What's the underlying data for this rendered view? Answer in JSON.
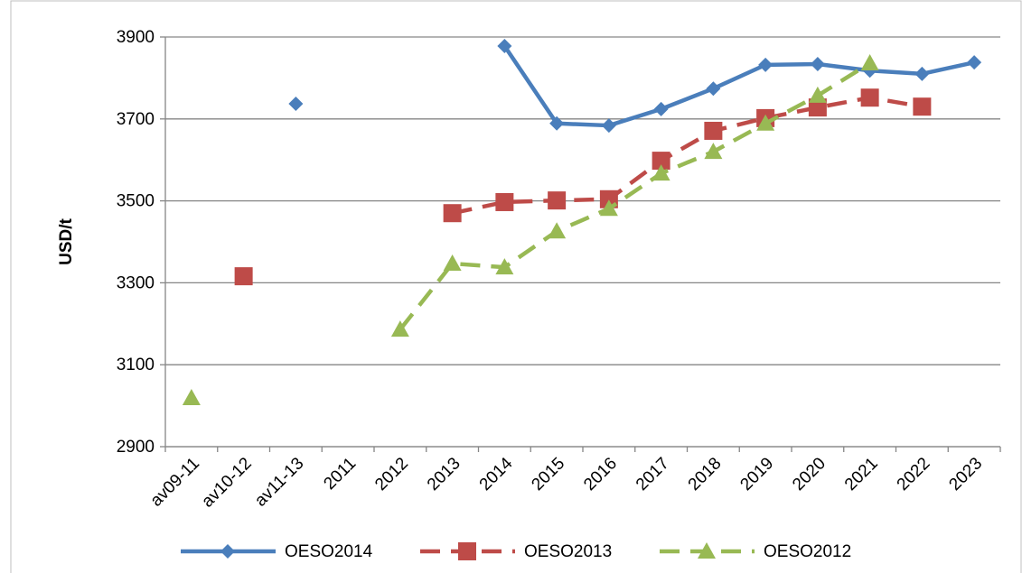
{
  "chart_data": {
    "type": "line",
    "y_label": "USD/t",
    "categories": [
      "av09-11",
      "av10-12",
      "av11-13",
      "2011",
      "2012",
      "2013",
      "2014",
      "2015",
      "2016",
      "2017",
      "2018",
      "2019",
      "2020",
      "2021",
      "2022",
      "2023"
    ],
    "series": [
      {
        "name": "OESO2014",
        "color": "#4a7ebb",
        "dash": false,
        "marker": "diamond",
        "values": [
          null,
          null,
          3737,
          null,
          null,
          null,
          3878,
          3689,
          3684,
          3724,
          3774,
          3832,
          3834,
          3818,
          3810,
          3838
        ]
      },
      {
        "name": "OESO2013",
        "color": "#be4b48",
        "dash": true,
        "marker": "square",
        "values": [
          null,
          3316,
          null,
          null,
          null,
          3470,
          3497,
          3501,
          3504,
          3598,
          3671,
          3702,
          3728,
          3752,
          3730,
          null
        ]
      },
      {
        "name": "OESO2012",
        "color": "#98b954",
        "dash": true,
        "marker": "triangle",
        "values": [
          3019,
          null,
          null,
          null,
          3186,
          3347,
          3338,
          3426,
          3481,
          3567,
          3620,
          3689,
          3757,
          3836,
          null,
          null
        ]
      }
    ],
    "ylim": [
      2900,
      3900
    ],
    "yticks": [
      2900,
      3100,
      3300,
      3500,
      3700,
      3900
    ],
    "grid": true,
    "legend": "bottom"
  }
}
